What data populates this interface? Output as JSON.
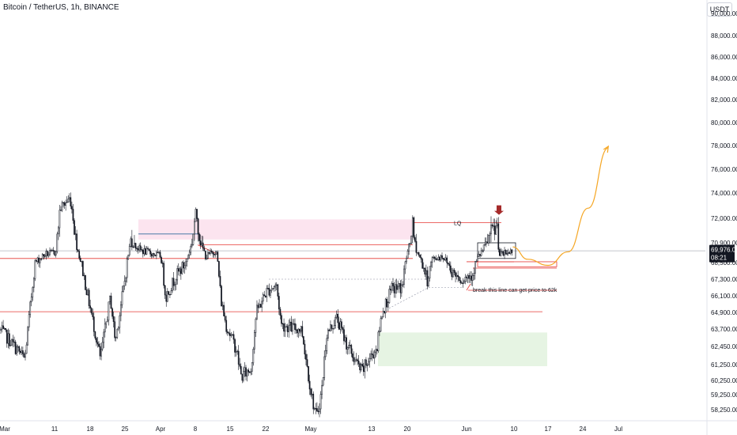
{
  "header": {
    "symbol_title": "Bitcoin / TetherUS, 1h, BINANCE",
    "currency_badge": "USDT"
  },
  "colors": {
    "candle": "#131722",
    "red_line": "#e53935",
    "blue_line": "#6d8fb5",
    "pink_zone": "#fce4ef",
    "green_zone": "#e6f4e3",
    "orange_path": "#f5a623",
    "red_arrow": "#a52a2a",
    "current_price_tag": "#131722"
  },
  "chart_data": {
    "type": "candlestick",
    "title": "Bitcoin / TetherUS, 1h, BINANCE",
    "x_tick_labels": [
      "Mar",
      "11",
      "18",
      "25",
      "Apr",
      "8",
      "15",
      "22",
      "May",
      "13",
      "20",
      "Jun",
      "10",
      "17",
      "24",
      "Jul"
    ],
    "y_tick_labels": [
      "90,000.00",
      "88,000.00",
      "86,000.00",
      "84,000.00",
      "82,000.00",
      "80,000.00",
      "78,000.00",
      "76,000.00",
      "74,000.00",
      "72,000.00",
      "70,900.00",
      "68,500.00",
      "67,300.00",
      "66,100.00",
      "64,900.00",
      "63,700.00",
      "62,450.00",
      "61,250.00",
      "60,250.00",
      "59,250.00",
      "58,250.00"
    ],
    "ylim": [
      57500,
      90500
    ],
    "current_price": {
      "value": "69,976.00",
      "countdown": "08:21"
    },
    "price_path_anchors": [
      {
        "date": "Mar 4",
        "price": 63600
      },
      {
        "date": "Mar 5",
        "price": 61600
      },
      {
        "date": "Mar 7",
        "price": 68500
      },
      {
        "date": "Mar 9",
        "price": 69500
      },
      {
        "date": "Mar 11",
        "price": 69700
      },
      {
        "date": "Mar 12",
        "price": 72800
      },
      {
        "date": "Mar 14",
        "price": 73600
      },
      {
        "date": "Mar 16",
        "price": 68900
      },
      {
        "date": "Mar 17",
        "price": 67000
      },
      {
        "date": "Mar 20",
        "price": 61600
      },
      {
        "date": "Mar 22",
        "price": 66000
      },
      {
        "date": "Mar 23",
        "price": 62800
      },
      {
        "date": "Mar 25",
        "price": 67600
      },
      {
        "date": "Mar 26",
        "price": 71000
      },
      {
        "date": "Mar 28",
        "price": 70000
      },
      {
        "date": "Apr 1",
        "price": 69300
      },
      {
        "date": "Apr 2",
        "price": 66000
      },
      {
        "date": "Apr 4",
        "price": 67500
      },
      {
        "date": "Apr 6",
        "price": 68500
      },
      {
        "date": "Apr 8",
        "price": 72400
      },
      {
        "date": "Apr 10",
        "price": 69200
      },
      {
        "date": "Apr 12",
        "price": 70000
      },
      {
        "date": "Apr 13",
        "price": 65800
      },
      {
        "date": "Apr 14",
        "price": 64000
      },
      {
        "date": "Apr 16",
        "price": 62300
      },
      {
        "date": "Apr 17",
        "price": 60500
      },
      {
        "date": "Apr 19",
        "price": 61000
      },
      {
        "date": "Apr 20",
        "price": 64900
      },
      {
        "date": "Apr 22",
        "price": 66400
      },
      {
        "date": "Apr 24",
        "price": 66900
      },
      {
        "date": "Apr 25",
        "price": 64000
      },
      {
        "date": "Apr 27",
        "price": 63800
      },
      {
        "date": "Apr 29",
        "price": 63700
      },
      {
        "date": "May 1",
        "price": 59200
      },
      {
        "date": "May 2",
        "price": 57700
      },
      {
        "date": "May 3",
        "price": 59500
      },
      {
        "date": "May 4",
        "price": 63300
      },
      {
        "date": "May 6",
        "price": 64500
      },
      {
        "date": "May 8",
        "price": 62600
      },
      {
        "date": "May 10",
        "price": 61300
      },
      {
        "date": "May 11",
        "price": 60800
      },
      {
        "date": "May 13",
        "price": 61900
      },
      {
        "date": "May 14",
        "price": 62400
      },
      {
        "date": "May 15",
        "price": 64900
      },
      {
        "date": "May 17",
        "price": 66600
      },
      {
        "date": "May 19",
        "price": 66700
      },
      {
        "date": "May 20",
        "price": 69500
      },
      {
        "date": "May 21",
        "price": 71800
      },
      {
        "date": "May 22",
        "price": 69800
      },
      {
        "date": "May 24",
        "price": 67200
      },
      {
        "date": "May 25",
        "price": 68900
      },
      {
        "date": "May 27",
        "price": 69300
      },
      {
        "date": "May 29",
        "price": 67800
      },
      {
        "date": "May 31",
        "price": 67300
      },
      {
        "date": "Jun 2",
        "price": 67700
      },
      {
        "date": "Jun 3",
        "price": 69000
      },
      {
        "date": "Jun 5",
        "price": 71000
      },
      {
        "date": "Jun 6",
        "price": 71400
      },
      {
        "date": "Jun 7",
        "price": 71600
      },
      {
        "date": "Jun 7",
        "price": 69400
      },
      {
        "date": "Jun 8",
        "price": 69500
      },
      {
        "date": "Jun 9",
        "price": 69700
      },
      {
        "date": "Jun 10",
        "price": 69976
      }
    ],
    "annotations": {
      "liquidity_label": "LQ",
      "break_note": "break this line can get price to 62k",
      "horizontal_levels": [
        {
          "price": 71800,
          "color": "red"
        },
        {
          "price": 71300,
          "color": "blue"
        },
        {
          "price": 70650,
          "color": "red"
        },
        {
          "price": 69930,
          "color": "gray"
        },
        {
          "price": 69000,
          "color": "red"
        },
        {
          "price": 68600,
          "color": "red"
        },
        {
          "price": 68100,
          "color": "red"
        },
        {
          "price": 66500,
          "color": "red"
        },
        {
          "price": 64950,
          "color": "red"
        }
      ],
      "zones": [
        {
          "type": "supply",
          "price_top": 71950,
          "price_bottom": 71050,
          "color": "pink"
        },
        {
          "type": "demand",
          "price_top": 63450,
          "price_bottom": 61150,
          "color": "green"
        }
      ],
      "projected_path": [
        {
          "date": "Jun 10",
          "price": 70400
        },
        {
          "date": "Jun 13",
          "price": 68900
        },
        {
          "date": "Jun 17",
          "price": 68300
        },
        {
          "date": "Jun 21",
          "price": 69800
        },
        {
          "date": "Jun 25",
          "price": 72800
        },
        {
          "date": "Jun 29",
          "price": 77800
        }
      ]
    }
  }
}
